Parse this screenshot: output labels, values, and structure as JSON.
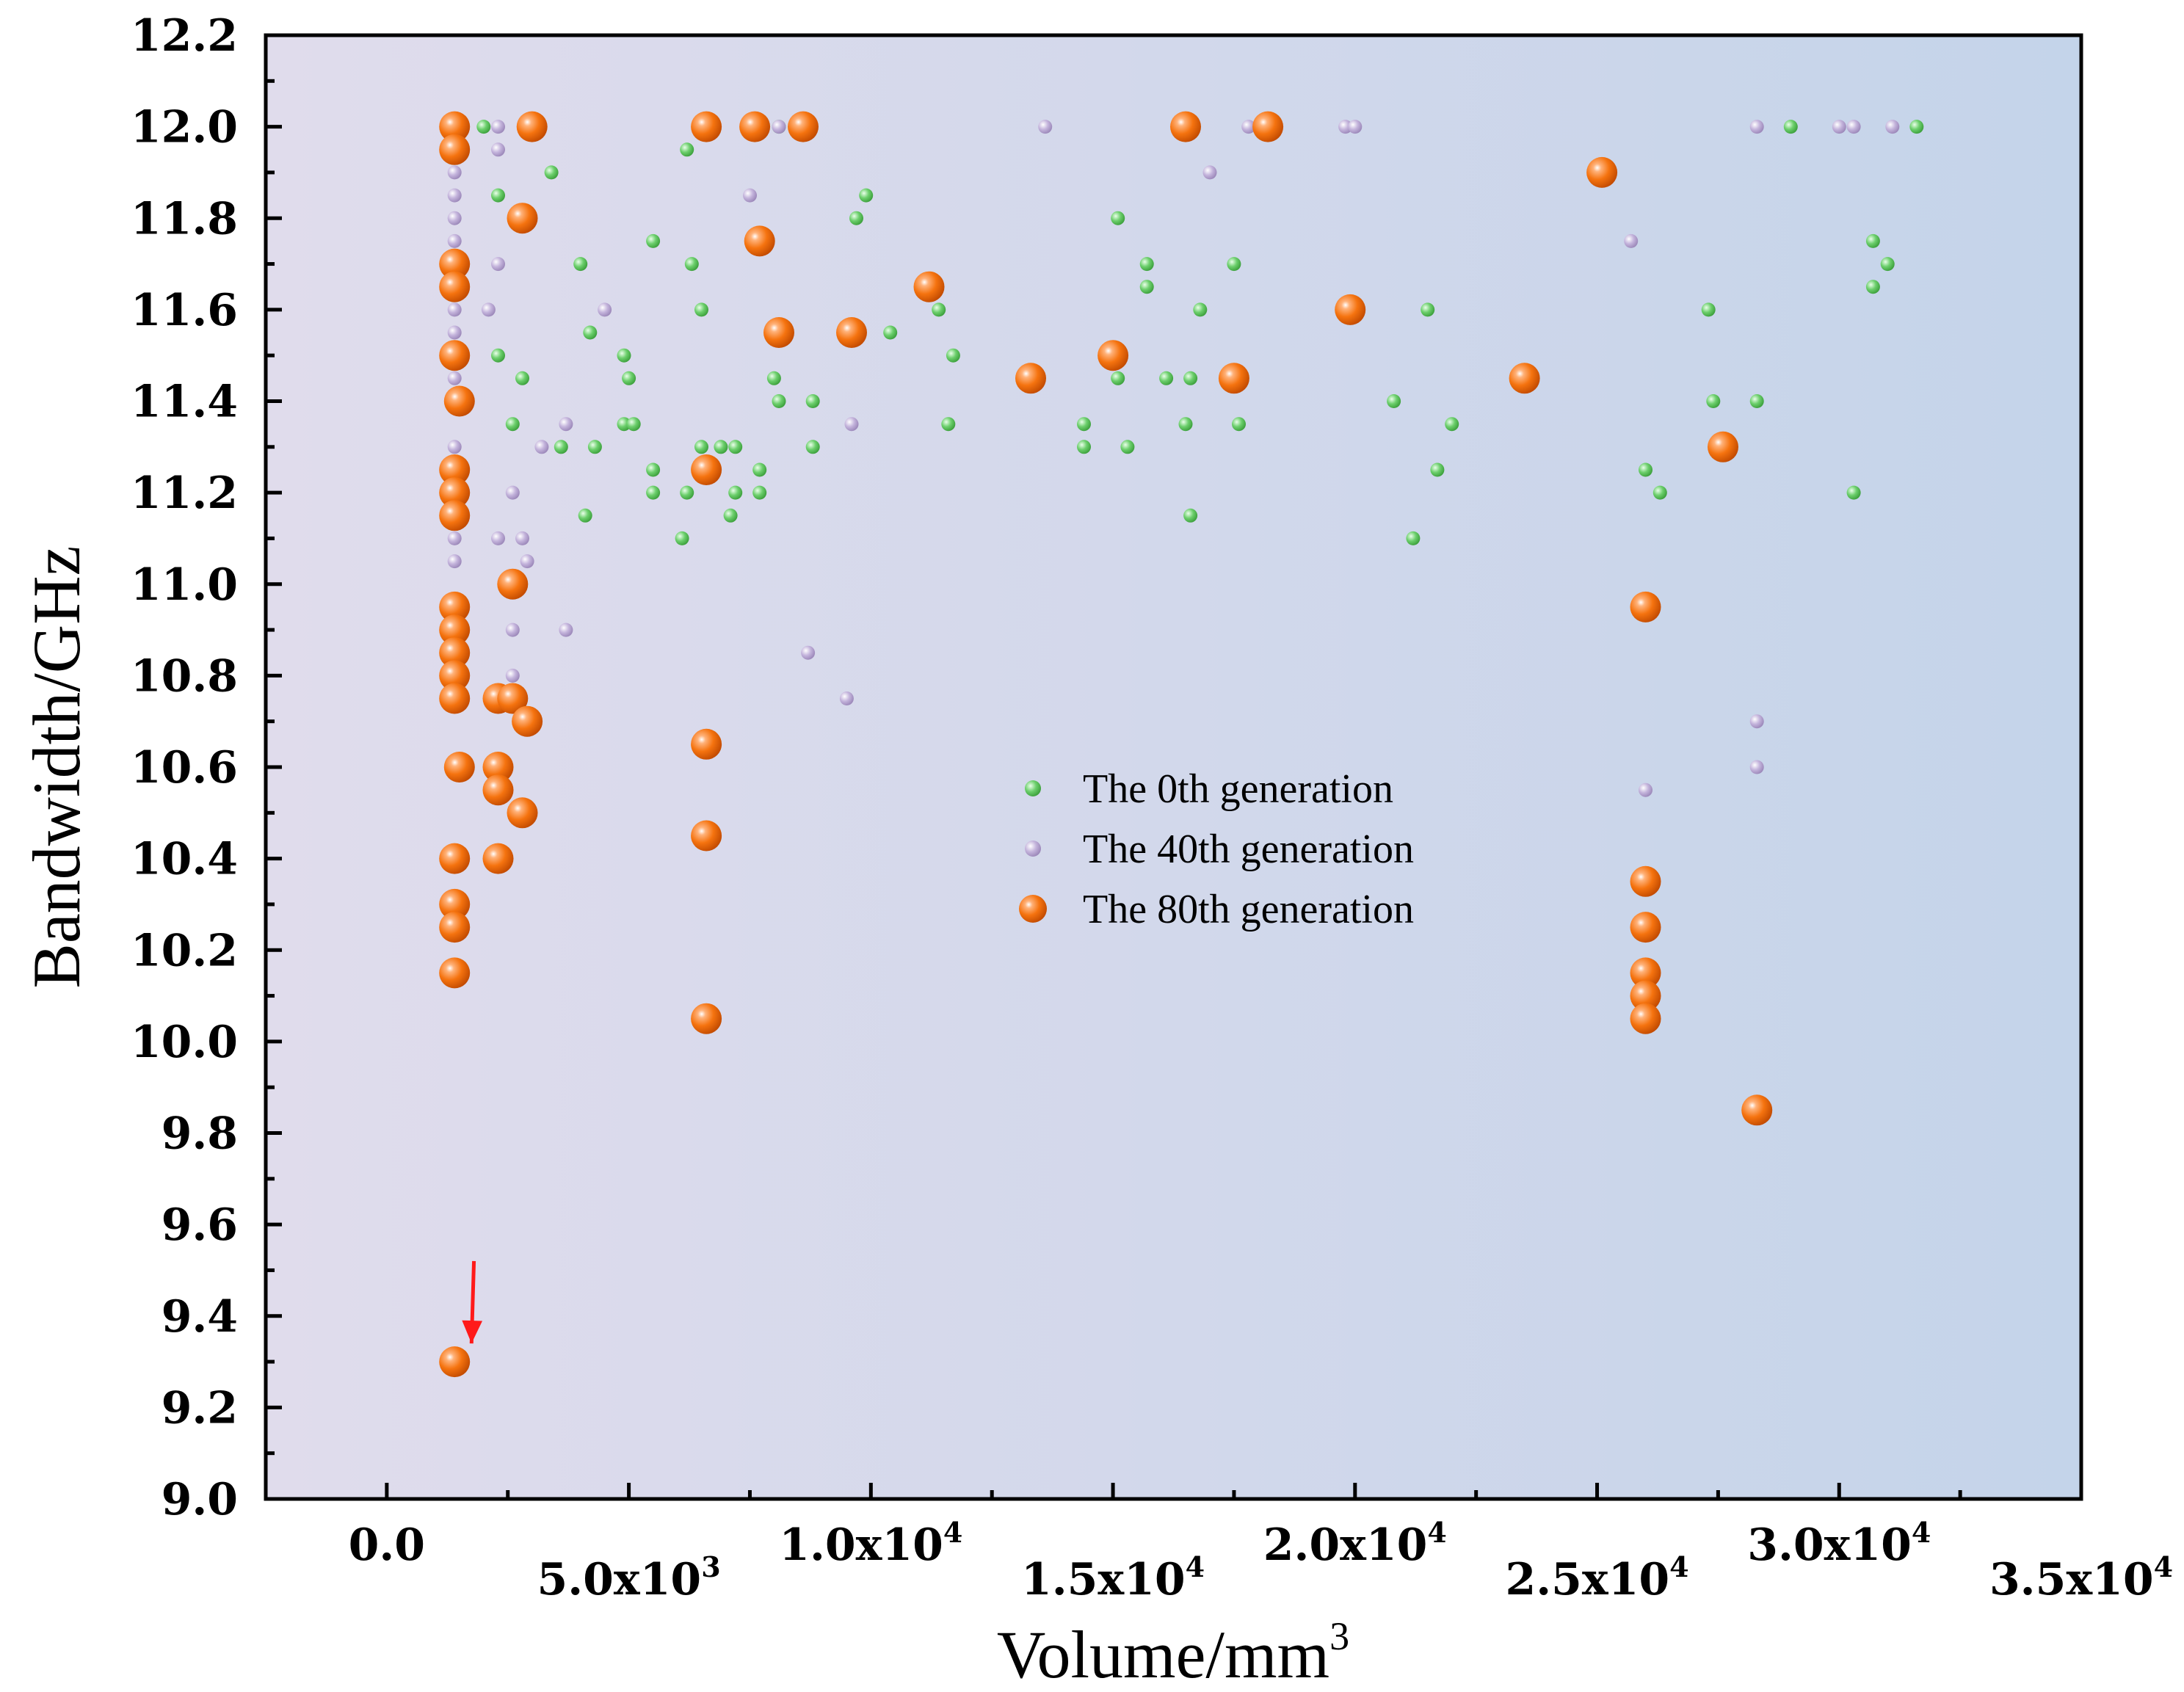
{
  "chart_data": {
    "type": "scatter",
    "xlabel": "Volume/mm",
    "xlabel_sup": "3",
    "ylabel": "Bandwidth/GHz",
    "xlim": [
      -2500,
      35000
    ],
    "ylim": [
      9.0,
      12.2
    ],
    "x_ticks": [
      {
        "value": 0,
        "mant": "0.0",
        "exp": ""
      },
      {
        "value": 5000,
        "mant": "5.0x10",
        "exp": "3"
      },
      {
        "value": 10000,
        "mant": "1.0x10",
        "exp": "4"
      },
      {
        "value": 15000,
        "mant": "1.5x10",
        "exp": "4"
      },
      {
        "value": 20000,
        "mant": "2.0x10",
        "exp": "4"
      },
      {
        "value": 25000,
        "mant": "2.5x10",
        "exp": "4"
      },
      {
        "value": 30000,
        "mant": "3.0x10",
        "exp": "4"
      },
      {
        "value": 35000,
        "mant": "3.5x10",
        "exp": "4"
      }
    ],
    "y_ticks": [
      {
        "value": 9.0,
        "label": "9.0"
      },
      {
        "value": 9.2,
        "label": "9.2"
      },
      {
        "value": 9.4,
        "label": "9.4"
      },
      {
        "value": 9.6,
        "label": "9.6"
      },
      {
        "value": 9.8,
        "label": "9.8"
      },
      {
        "value": 10.0,
        "label": "10.0"
      },
      {
        "value": 10.2,
        "label": "10.2"
      },
      {
        "value": 10.4,
        "label": "10.4"
      },
      {
        "value": 10.6,
        "label": "10.6"
      },
      {
        "value": 10.8,
        "label": "10.8"
      },
      {
        "value": 11.0,
        "label": "11.0"
      },
      {
        "value": 11.2,
        "label": "11.2"
      },
      {
        "value": 11.4,
        "label": "11.4"
      },
      {
        "value": 11.6,
        "label": "11.6"
      },
      {
        "value": 11.8,
        "label": "11.8"
      },
      {
        "value": 12.0,
        "label": "12.0"
      },
      {
        "value": 12.2,
        "label": "12.2"
      }
    ],
    "background_gradient": [
      "#e0dcec",
      "#c4d4ea"
    ],
    "legend_position": "center",
    "annotation": {
      "type": "arrow",
      "color": "#ff1a1a",
      "from": [
        1800,
        9.52
      ],
      "to": [
        1750,
        9.34
      ]
    },
    "series": [
      {
        "name": "The 0th generation",
        "color": "#6ccf6c",
        "marker": "small",
        "points": [
          [
            2000,
            12.0
          ],
          [
            2300,
            11.85
          ],
          [
            3400,
            11.9
          ],
          [
            2300,
            11.5
          ],
          [
            2800,
            11.45
          ],
          [
            2600,
            11.35
          ],
          [
            3600,
            11.3
          ],
          [
            4000,
            11.7
          ],
          [
            4200,
            11.55
          ],
          [
            4300,
            11.3
          ],
          [
            4100,
            11.15
          ],
          [
            4900,
            11.5
          ],
          [
            5000,
            11.45
          ],
          [
            4900,
            11.35
          ],
          [
            5100,
            11.35
          ],
          [
            5500,
            11.75
          ],
          [
            5500,
            11.25
          ],
          [
            5500,
            11.2
          ],
          [
            6200,
            11.95
          ],
          [
            6300,
            11.7
          ],
          [
            6500,
            11.6
          ],
          [
            6500,
            11.3
          ],
          [
            6200,
            11.2
          ],
          [
            6100,
            11.1
          ],
          [
            6900,
            11.3
          ],
          [
            7200,
            11.3
          ],
          [
            7200,
            11.2
          ],
          [
            7100,
            11.15
          ],
          [
            7700,
            11.25
          ],
          [
            7700,
            11.2
          ],
          [
            8000,
            11.45
          ],
          [
            8100,
            11.4
          ],
          [
            8100,
            12.0
          ],
          [
            8800,
            11.4
          ],
          [
            8800,
            11.3
          ],
          [
            9700,
            11.8
          ],
          [
            9900,
            11.85
          ],
          [
            10400,
            11.55
          ],
          [
            11400,
            11.6
          ],
          [
            11600,
            11.35
          ],
          [
            11700,
            11.5
          ],
          [
            15100,
            11.8
          ],
          [
            15700,
            11.7
          ],
          [
            15700,
            11.65
          ],
          [
            15100,
            11.45
          ],
          [
            14400,
            11.35
          ],
          [
            14400,
            11.3
          ],
          [
            15300,
            11.3
          ],
          [
            16100,
            11.45
          ],
          [
            16500,
            11.35
          ],
          [
            16600,
            11.45
          ],
          [
            16600,
            11.15
          ],
          [
            16800,
            11.6
          ],
          [
            17500,
            11.7
          ],
          [
            17600,
            11.35
          ],
          [
            20800,
            11.4
          ],
          [
            21500,
            11.6
          ],
          [
            21700,
            11.25
          ],
          [
            22000,
            11.35
          ],
          [
            21200,
            11.1
          ],
          [
            26000,
            11.25
          ],
          [
            26300,
            11.2
          ],
          [
            27300,
            11.6
          ],
          [
            27400,
            11.4
          ],
          [
            28300,
            11.4
          ],
          [
            29000,
            12.0
          ],
          [
            30300,
            11.2
          ],
          [
            30700,
            11.75
          ],
          [
            30700,
            11.65
          ],
          [
            31000,
            11.7
          ],
          [
            31600,
            12.0
          ]
        ]
      },
      {
        "name": "The 40th generation",
        "color": "#c4b4dc",
        "marker": "small",
        "points": [
          [
            1400,
            11.9
          ],
          [
            1400,
            11.85
          ],
          [
            1400,
            11.8
          ],
          [
            1400,
            11.75
          ],
          [
            1400,
            11.6
          ],
          [
            1400,
            11.55
          ],
          [
            1400,
            11.5
          ],
          [
            1400,
            11.45
          ],
          [
            1400,
            11.3
          ],
          [
            1400,
            11.1
          ],
          [
            1400,
            11.05
          ],
          [
            2300,
            12.0
          ],
          [
            2300,
            11.95
          ],
          [
            2300,
            11.7
          ],
          [
            2100,
            11.6
          ],
          [
            2600,
            11.2
          ],
          [
            2300,
            11.1
          ],
          [
            2800,
            11.1
          ],
          [
            2900,
            11.05
          ],
          [
            2600,
            10.9
          ],
          [
            2600,
            10.8
          ],
          [
            3200,
            11.3
          ],
          [
            3700,
            11.35
          ],
          [
            3700,
            10.9
          ],
          [
            4500,
            11.6
          ],
          [
            8100,
            12.0
          ],
          [
            7500,
            11.85
          ],
          [
            8700,
            10.85
          ],
          [
            9600,
            11.35
          ],
          [
            9500,
            10.75
          ],
          [
            13600,
            12.0
          ],
          [
            17000,
            11.9
          ],
          [
            17800,
            12.0
          ],
          [
            19800,
            12.0
          ],
          [
            20000,
            12.0
          ],
          [
            25700,
            11.75
          ],
          [
            26000,
            10.55
          ],
          [
            28300,
            12.0
          ],
          [
            28300,
            10.7
          ],
          [
            28300,
            10.6
          ],
          [
            30000,
            12.0
          ],
          [
            30300,
            12.0
          ],
          [
            31100,
            12.0
          ]
        ]
      },
      {
        "name": "The 80th generation",
        "color": "#f5730f",
        "marker": "large",
        "points": [
          [
            1400,
            12.0
          ],
          [
            1400,
            11.95
          ],
          [
            1400,
            11.7
          ],
          [
            1400,
            11.65
          ],
          [
            1400,
            11.5
          ],
          [
            1500,
            11.4
          ],
          [
            1400,
            11.25
          ],
          [
            1400,
            11.2
          ],
          [
            1400,
            11.15
          ],
          [
            1400,
            10.95
          ],
          [
            1400,
            10.9
          ],
          [
            1400,
            10.85
          ],
          [
            1400,
            10.8
          ],
          [
            1400,
            10.75
          ],
          [
            1500,
            10.6
          ],
          [
            1400,
            10.4
          ],
          [
            1400,
            10.3
          ],
          [
            1400,
            10.25
          ],
          [
            1400,
            10.15
          ],
          [
            1400,
            9.3
          ],
          [
            3000,
            12.0
          ],
          [
            2800,
            11.8
          ],
          [
            2600,
            11.0
          ],
          [
            2300,
            10.75
          ],
          [
            2600,
            10.75
          ],
          [
            2900,
            10.7
          ],
          [
            2300,
            10.6
          ],
          [
            2300,
            10.55
          ],
          [
            2800,
            10.5
          ],
          [
            2300,
            10.4
          ],
          [
            6600,
            12.0
          ],
          [
            6600,
            11.25
          ],
          [
            6600,
            10.65
          ],
          [
            6600,
            10.45
          ],
          [
            6600,
            10.05
          ],
          [
            7600,
            12.0
          ],
          [
            8600,
            12.0
          ],
          [
            7700,
            11.75
          ],
          [
            8100,
            11.55
          ],
          [
            9600,
            11.55
          ],
          [
            11200,
            11.65
          ],
          [
            13300,
            11.45
          ],
          [
            15000,
            11.5
          ],
          [
            16500,
            12.0
          ],
          [
            18200,
            12.0
          ],
          [
            17500,
            11.45
          ],
          [
            19900,
            11.6
          ],
          [
            23500,
            11.45
          ],
          [
            25100,
            11.9
          ],
          [
            27600,
            11.3
          ],
          [
            26000,
            10.95
          ],
          [
            26000,
            10.35
          ],
          [
            26000,
            10.25
          ],
          [
            26000,
            10.15
          ],
          [
            26000,
            10.1
          ],
          [
            26000,
            10.05
          ],
          [
            28300,
            9.85
          ]
        ]
      }
    ]
  }
}
